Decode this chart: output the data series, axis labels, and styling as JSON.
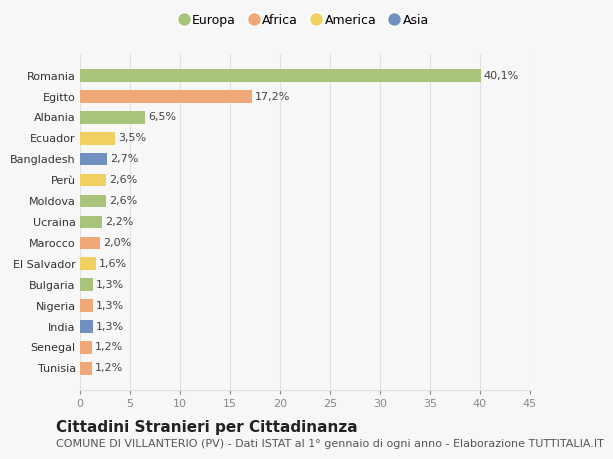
{
  "categories": [
    "Tunisia",
    "Senegal",
    "India",
    "Nigeria",
    "Bulgaria",
    "El Salvador",
    "Marocco",
    "Ucraina",
    "Moldova",
    "Perù",
    "Bangladesh",
    "Ecuador",
    "Albania",
    "Egitto",
    "Romania"
  ],
  "values": [
    1.2,
    1.2,
    1.3,
    1.3,
    1.3,
    1.6,
    2.0,
    2.2,
    2.6,
    2.6,
    2.7,
    3.5,
    6.5,
    17.2,
    40.1
  ],
  "labels": [
    "1,2%",
    "1,2%",
    "1,3%",
    "1,3%",
    "1,3%",
    "1,6%",
    "2,0%",
    "2,2%",
    "2,6%",
    "2,6%",
    "2,7%",
    "3,5%",
    "6,5%",
    "17,2%",
    "40,1%"
  ],
  "colors": [
    "#f0a878",
    "#f0a878",
    "#7090c0",
    "#f0a878",
    "#a8c47a",
    "#f0d060",
    "#f0a878",
    "#a8c47a",
    "#a8c47a",
    "#f0d060",
    "#7090c0",
    "#f0d060",
    "#a8c47a",
    "#f0a878",
    "#a8c47a"
  ],
  "legend_labels": [
    "Europa",
    "Africa",
    "America",
    "Asia"
  ],
  "legend_colors": [
    "#a8c47a",
    "#f0a878",
    "#f0d060",
    "#7090c0"
  ],
  "xlim": [
    0,
    45
  ],
  "xticks": [
    0,
    5,
    10,
    15,
    20,
    25,
    30,
    35,
    40,
    45
  ],
  "title": "Cittadini Stranieri per Cittadinanza",
  "subtitle": "COMUNE DI VILLANTERIO (PV) - Dati ISTAT al 1° gennaio di ogni anno - Elaborazione TUTTITALIA.IT",
  "bg_color": "#f7f7f7",
  "grid_color": "#e0e0e0",
  "title_fontsize": 11,
  "subtitle_fontsize": 8,
  "label_fontsize": 8,
  "tick_fontsize": 8,
  "legend_fontsize": 9
}
